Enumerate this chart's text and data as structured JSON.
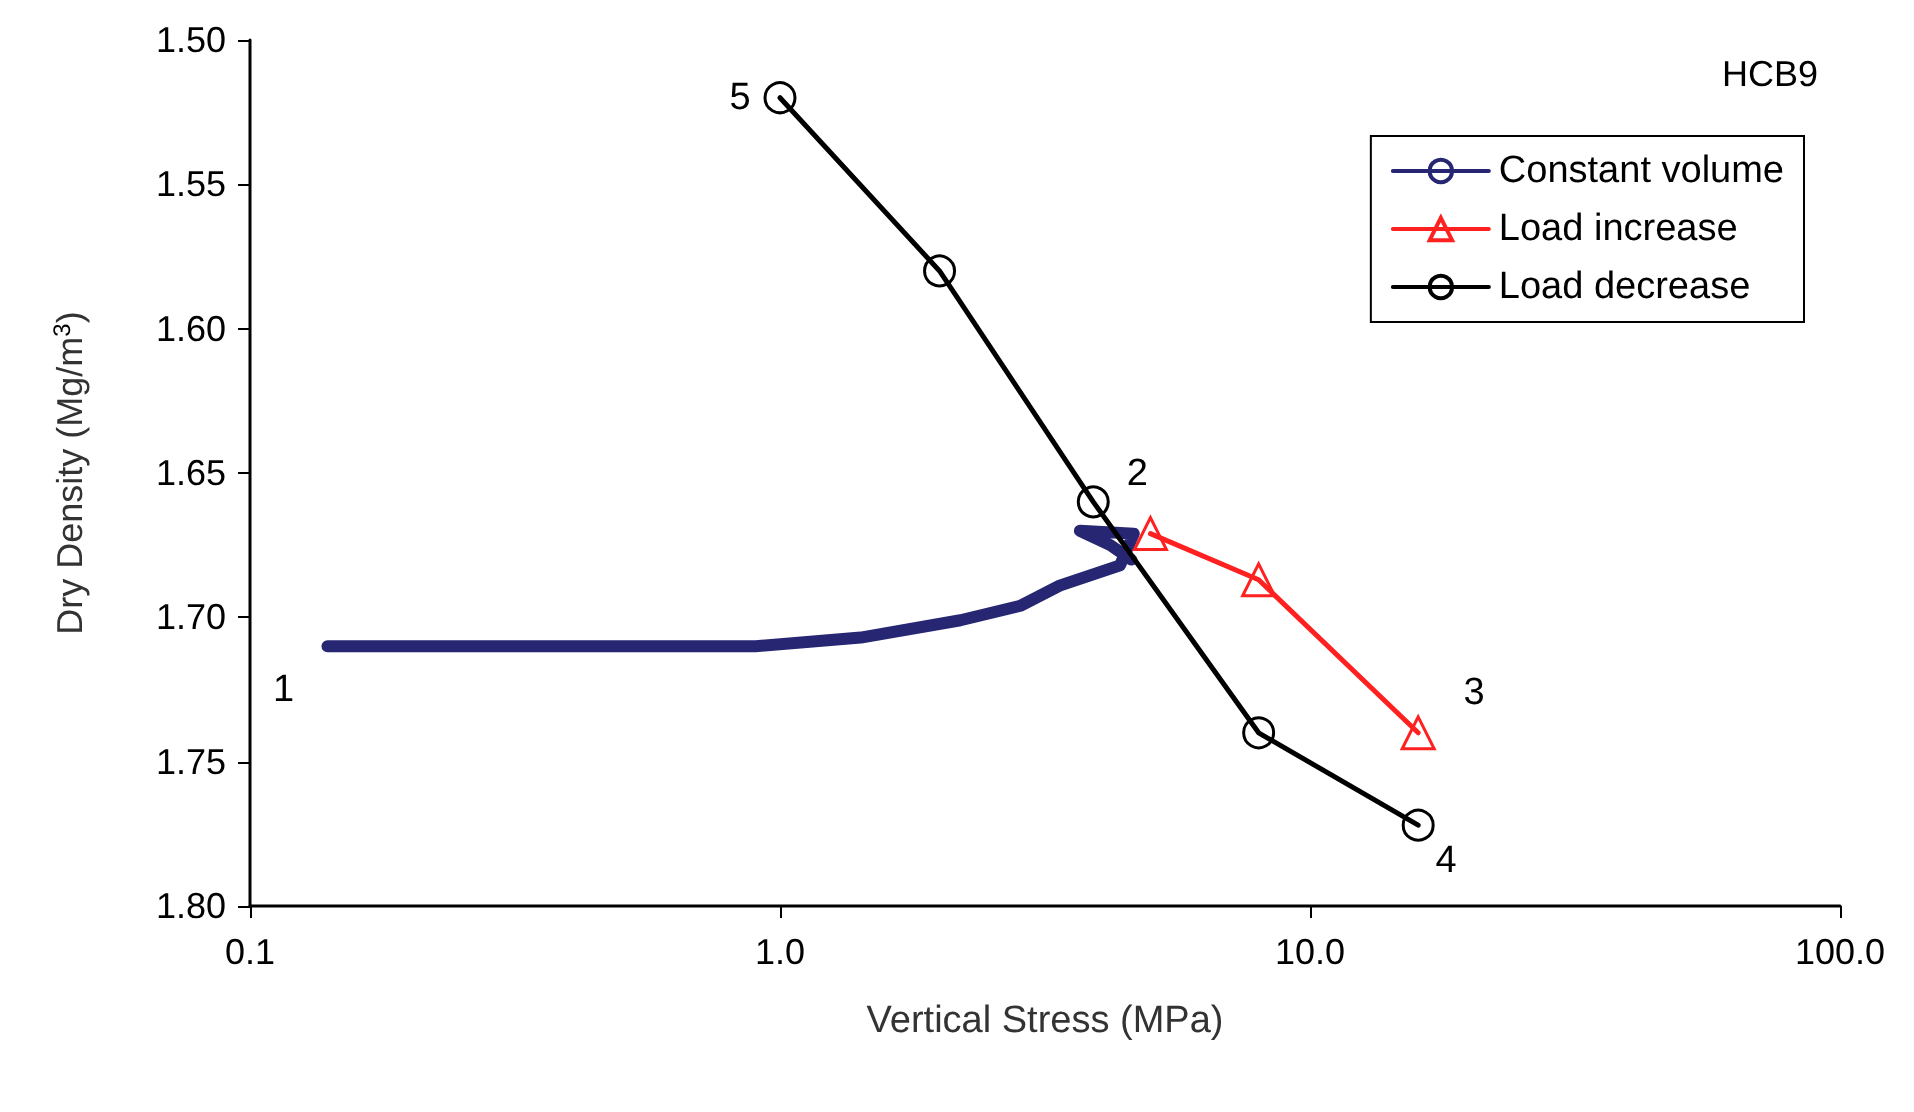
{
  "chart_data": {
    "type": "line",
    "xlabel": "Vertical Stress (MPa)",
    "ylabel": "Dry Density (Mg/m$^{3}$)",
    "log": "x",
    "xlim": [
      0.1,
      100
    ],
    "xticks": [
      0.1,
      {
        "value": 1,
        "label": "1.0"
      },
      {
        "value": 10,
        "label": "10.0"
      },
      {
        "value": 100,
        "label": "100.0"
      }
    ],
    "ylim": [
      1.8,
      1.5
    ],
    "yticks": [
      {
        "value": 1.5,
        "label": "1.50"
      },
      1.55,
      {
        "value": 1.6,
        "label": "1.60"
      },
      1.65,
      {
        "value": 1.7,
        "label": "1.70"
      },
      1.75,
      {
        "value": 1.8,
        "label": "1.80"
      }
    ],
    "grid": false,
    "legend": "top right",
    "line_style": "solid",
    "series": [
      {
        "name": "Constant volume",
        "color": "#262673",
        "marker": "none",
        "x": [
          0.14,
          0.5,
          0.9,
          1.42,
          2.19,
          2.84,
          3.37,
          4.38,
          4.65,
          3.68,
          4.2,
          4.6
        ],
        "values": [
          1.71,
          1.71,
          1.71,
          1.707,
          1.701,
          1.696,
          1.689,
          1.682,
          1.671,
          1.67,
          1.675,
          1.68
        ]
      },
      {
        "name": "Load increase",
        "color": "#ff2020",
        "marker": "triangle",
        "x": [
          5,
          8,
          16
        ],
        "values": [
          1.671,
          1.687,
          1.74
        ]
      },
      {
        "name": "Load decrease",
        "color": "#000000",
        "marker": "circle",
        "x": [
          1,
          2,
          3.9,
          8,
          16
        ],
        "values": [
          1.52,
          1.58,
          1.66,
          1.74,
          1.772
        ]
      }
    ],
    "annotations": [
      "HCB9",
      {
        "text": "1",
        "x": 0.14,
        "y": 1.71
      },
      {
        "text": "2",
        "x": 3.9,
        "y": 1.66
      },
      {
        "text": "3",
        "x": 16,
        "y": 1.74
      },
      {
        "text": "4",
        "x": 16,
        "y": 1.772
      },
      {
        "text": "5",
        "x": 1,
        "y": 1.52
      }
    ]
  }
}
